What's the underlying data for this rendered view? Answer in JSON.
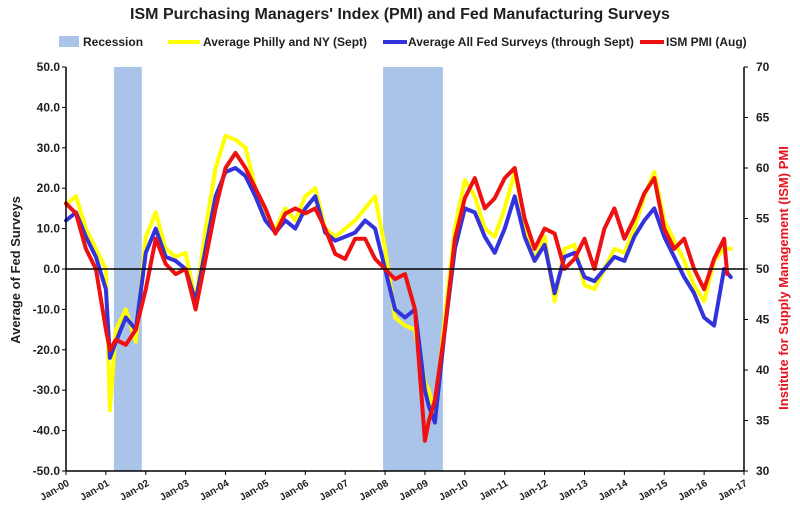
{
  "chart_data": {
    "type": "line",
    "title": "ISM Purchasing Managers' Index (PMI) and Fed Manufacturing Surveys",
    "ylabel": "Average of Fed Surveys",
    "y2label": "Institute for Supply Management (ISM) PMI",
    "ylim": [
      -50,
      50
    ],
    "y2lim": [
      30,
      70
    ],
    "y_ticks": [
      "50.0",
      "40.0",
      "30.0",
      "20.0",
      "10.0",
      "0.0",
      "-10.0",
      "-20.0",
      "-30.0",
      "-40.0",
      "-50.0"
    ],
    "y2_ticks": [
      "70",
      "65",
      "60",
      "55",
      "50",
      "45",
      "40",
      "35",
      "30"
    ],
    "x_ticks": [
      "Jan-00",
      "Jan-01",
      "Jan-02",
      "Jan-03",
      "Jan-04",
      "Jan-05",
      "Jan-06",
      "Jan-07",
      "Jan-08",
      "Jan-09",
      "Jan-10",
      "Jan-11",
      "Jan-12",
      "Jan-13",
      "Jan-14",
      "Jan-15",
      "Jan-16",
      "Jan-17"
    ],
    "xlim": [
      2000.0,
      2017.0
    ],
    "legend_position": "top",
    "legend": [
      {
        "label": "Recession",
        "color": "#a9c4e8",
        "kind": "box"
      },
      {
        "label": "Average Philly and NY (Sept)",
        "color": "#ffff00",
        "kind": "line"
      },
      {
        "label": "Average All Fed Surveys (through Sept)",
        "color": "#3333dd",
        "kind": "line"
      },
      {
        "label": "ISM PMI (Aug)",
        "color": "#ee1111",
        "kind": "line"
      }
    ],
    "recessions": [
      {
        "start": 2001.2,
        "end": 2001.9
      },
      {
        "start": 2007.95,
        "end": 2009.45
      }
    ],
    "series": [
      {
        "name": "Average Philly and NY (Sept)",
        "axis": "left",
        "color": "#ffff00",
        "x": [
          2000.0,
          2000.25,
          2000.5,
          2000.75,
          2001.0,
          2001.1,
          2001.25,
          2001.5,
          2001.75,
          2002.0,
          2002.25,
          2002.5,
          2002.75,
          2003.0,
          2003.25,
          2003.5,
          2003.75,
          2004.0,
          2004.25,
          2004.5,
          2004.75,
          2005.0,
          2005.25,
          2005.5,
          2005.75,
          2006.0,
          2006.25,
          2006.5,
          2006.75,
          2007.0,
          2007.25,
          2007.5,
          2007.75,
          2008.0,
          2008.25,
          2008.5,
          2008.75,
          2009.0,
          2009.1,
          2009.25,
          2009.5,
          2009.75,
          2010.0,
          2010.25,
          2010.5,
          2010.75,
          2011.0,
          2011.25,
          2011.5,
          2011.75,
          2012.0,
          2012.25,
          2012.5,
          2012.75,
          2013.0,
          2013.25,
          2013.5,
          2013.75,
          2014.0,
          2014.25,
          2014.5,
          2014.75,
          2015.0,
          2015.25,
          2015.5,
          2015.75,
          2016.0,
          2016.25,
          2016.5,
          2016.67
        ],
        "values": [
          16,
          18,
          10,
          5,
          0,
          -35,
          -15,
          -10,
          -18,
          8,
          14,
          5,
          3,
          4,
          -8,
          10,
          25,
          33,
          32,
          30,
          20,
          12,
          10,
          15,
          12,
          18,
          20,
          10,
          8,
          10,
          12,
          15,
          18,
          5,
          -12,
          -14,
          -15,
          -28,
          -30,
          -36,
          -12,
          10,
          22,
          18,
          10,
          8,
          15,
          24,
          12,
          2,
          8,
          -8,
          5,
          6,
          -4,
          -5,
          0,
          5,
          4,
          10,
          18,
          24,
          12,
          7,
          2,
          -4,
          -8,
          2,
          5,
          5
        ]
      },
      {
        "name": "Average All Fed Surveys (through Sept)",
        "axis": "left",
        "color": "#3333dd",
        "x": [
          2000.0,
          2000.25,
          2000.5,
          2000.75,
          2001.0,
          2001.1,
          2001.25,
          2001.5,
          2001.75,
          2002.0,
          2002.25,
          2002.5,
          2002.75,
          2003.0,
          2003.25,
          2003.5,
          2003.75,
          2004.0,
          2004.25,
          2004.5,
          2004.75,
          2005.0,
          2005.25,
          2005.5,
          2005.75,
          2006.0,
          2006.25,
          2006.5,
          2006.75,
          2007.0,
          2007.25,
          2007.5,
          2007.75,
          2008.0,
          2008.25,
          2008.5,
          2008.75,
          2009.0,
          2009.1,
          2009.25,
          2009.5,
          2009.75,
          2010.0,
          2010.25,
          2010.5,
          2010.75,
          2011.0,
          2011.25,
          2011.5,
          2011.75,
          2012.0,
          2012.25,
          2012.5,
          2012.75,
          2013.0,
          2013.25,
          2013.5,
          2013.75,
          2014.0,
          2014.25,
          2014.5,
          2014.75,
          2015.0,
          2015.25,
          2015.5,
          2015.75,
          2016.0,
          2016.25,
          2016.5,
          2016.67
        ],
        "values": [
          12,
          14,
          8,
          3,
          -5,
          -22,
          -18,
          -12,
          -15,
          4,
          10,
          3,
          2,
          0,
          -8,
          5,
          18,
          24,
          25,
          23,
          18,
          12,
          9,
          12,
          10,
          15,
          18,
          9,
          7,
          8,
          9,
          12,
          10,
          0,
          -10,
          -12,
          -10,
          -30,
          -34,
          -38,
          -15,
          5,
          15,
          14,
          8,
          4,
          10,
          18,
          8,
          2,
          6,
          -6,
          3,
          4,
          -2,
          -3,
          0,
          3,
          2,
          8,
          12,
          15,
          8,
          3,
          -2,
          -6,
          -12,
          -14,
          0,
          -2
        ]
      },
      {
        "name": "ISM PMI (Aug)",
        "axis": "right",
        "color": "#ee1111",
        "x": [
          2000.0,
          2000.25,
          2000.5,
          2000.75,
          2001.0,
          2001.1,
          2001.25,
          2001.5,
          2001.75,
          2002.0,
          2002.25,
          2002.5,
          2002.75,
          2003.0,
          2003.25,
          2003.5,
          2003.75,
          2004.0,
          2004.25,
          2004.5,
          2004.75,
          2005.0,
          2005.25,
          2005.5,
          2005.75,
          2006.0,
          2006.25,
          2006.5,
          2006.75,
          2007.0,
          2007.25,
          2007.5,
          2007.75,
          2008.0,
          2008.25,
          2008.5,
          2008.75,
          2009.0,
          2009.1,
          2009.25,
          2009.5,
          2009.75,
          2010.0,
          2010.25,
          2010.5,
          2010.75,
          2011.0,
          2011.25,
          2011.5,
          2011.75,
          2012.0,
          2012.25,
          2012.5,
          2012.75,
          2013.0,
          2013.25,
          2013.5,
          2013.75,
          2014.0,
          2014.25,
          2014.5,
          2014.75,
          2015.0,
          2015.25,
          2015.5,
          2015.75,
          2016.0,
          2016.25,
          2016.5,
          2016.58
        ],
        "values": [
          56.5,
          55.5,
          52,
          50,
          44,
          42,
          43,
          42.5,
          44,
          48,
          53,
          50.5,
          49.5,
          50,
          46,
          51,
          56,
          60,
          61.5,
          60,
          58,
          56,
          53.5,
          55.5,
          56,
          55.5,
          56,
          54,
          51.5,
          51,
          53,
          53,
          51,
          50,
          49,
          49.5,
          46,
          33,
          35,
          37,
          44,
          53,
          57,
          59,
          56,
          57,
          59,
          60,
          55,
          52,
          54,
          53.5,
          50,
          51,
          53,
          50,
          54,
          56,
          53,
          55,
          57.5,
          59,
          54,
          52,
          53,
          50,
          48,
          51,
          53,
          49.5
        ]
      }
    ]
  }
}
